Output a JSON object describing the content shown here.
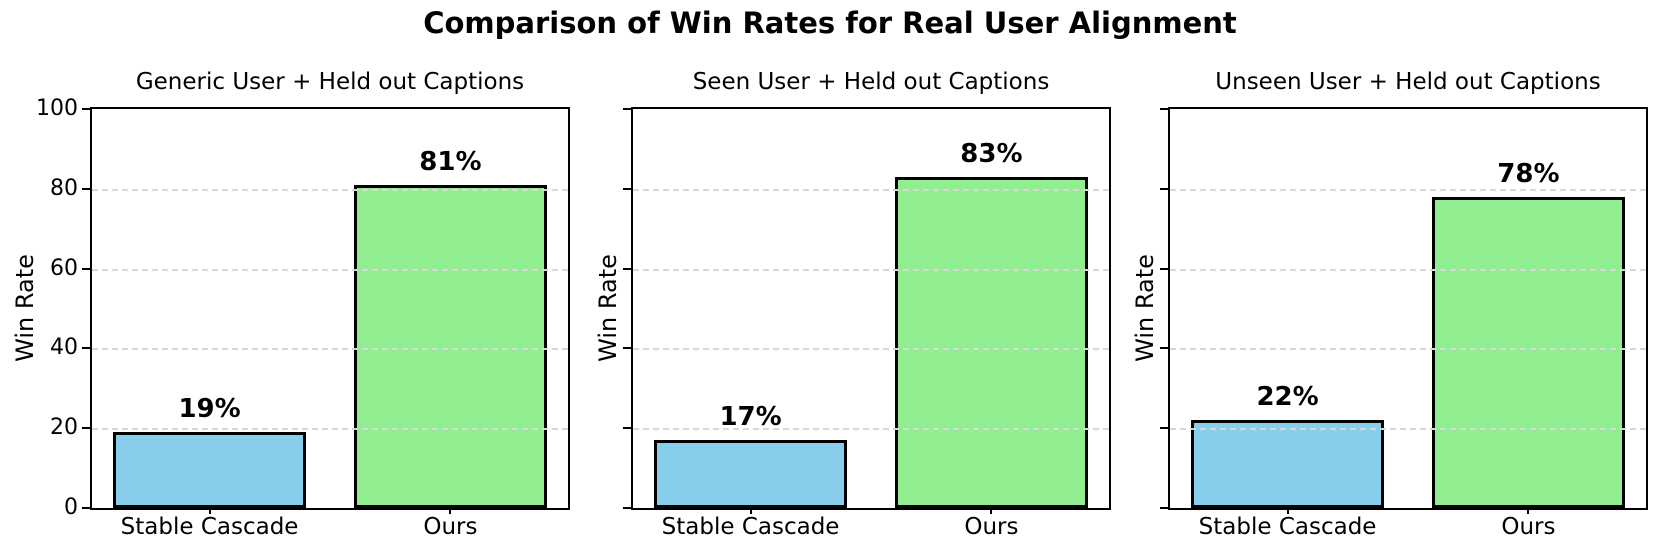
{
  "title": "Comparison of Win Rates for Real User Alignment",
  "colors": {
    "stable_cascade_bar": "#87CEEB",
    "ours_bar": "#90EE90",
    "bar_edge": "#000000",
    "grid": "#d8d8d8",
    "spine": "#000000",
    "text": "#000000",
    "background": "#ffffff"
  },
  "chart_data": [
    {
      "type": "bar",
      "title": "Generic User + Held out Captions",
      "categories": [
        "Stable Cascade",
        "Ours"
      ],
      "values": [
        19,
        81
      ],
      "value_labels": [
        "19%",
        "81%"
      ],
      "xlabel": "",
      "ylabel": "Win Rate",
      "ylim": [
        0,
        100
      ],
      "yticks": [
        0,
        20,
        40,
        60,
        80,
        100
      ],
      "show_ytick_labels": true,
      "grid": "horizontal dashed at 20/40/60/80, drawn over bars",
      "legend": "none"
    },
    {
      "type": "bar",
      "title": "Seen User + Held out Captions",
      "categories": [
        "Stable Cascade",
        "Ours"
      ],
      "values": [
        17,
        83
      ],
      "value_labels": [
        "17%",
        "83%"
      ],
      "xlabel": "",
      "ylabel": "Win Rate",
      "ylim": [
        0,
        100
      ],
      "yticks": [
        0,
        20,
        40,
        60,
        80,
        100
      ],
      "show_ytick_labels": false,
      "grid": "horizontal dashed at 20/40/60/80, drawn over bars",
      "legend": "none"
    },
    {
      "type": "bar",
      "title": "Unseen User + Held out Captions",
      "categories": [
        "Stable Cascade",
        "Ours"
      ],
      "values": [
        22,
        78
      ],
      "value_labels": [
        "22%",
        "78%"
      ],
      "xlabel": "",
      "ylabel": "Win Rate",
      "ylim": [
        0,
        100
      ],
      "yticks": [
        0,
        20,
        40,
        60,
        80,
        100
      ],
      "show_ytick_labels": false,
      "grid": "horizontal dashed at 20/40/60/80, drawn over bars",
      "legend": "none"
    }
  ]
}
